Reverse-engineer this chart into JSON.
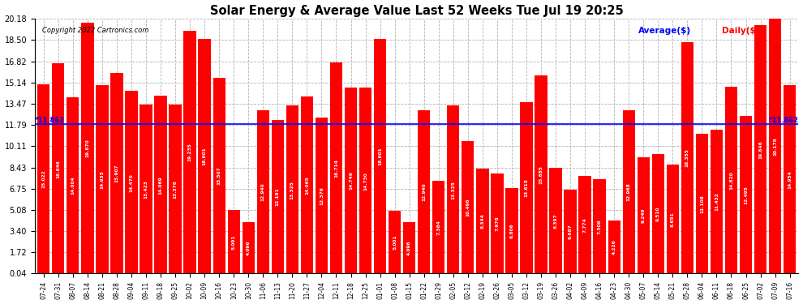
{
  "title": "Solar Energy & Average Value Last 52 Weeks Tue Jul 19 20:25",
  "copyright": "Copyright 2022 Cartronics.com",
  "legend_avg": "Average($)",
  "legend_daily": "Daily($)",
  "average_line": 11.862,
  "bar_color": "#FF0000",
  "avg_line_color": "#0000FF",
  "background_color": "#FFFFFF",
  "grid_color": "#AAAAAA",
  "ylim_min": 0.04,
  "ylim_max": 20.18,
  "yticks": [
    0.04,
    1.72,
    3.4,
    5.08,
    6.75,
    8.43,
    10.11,
    11.79,
    13.47,
    15.14,
    16.82,
    18.5,
    20.18
  ],
  "categories": [
    "07-24",
    "07-31",
    "08-07",
    "08-14",
    "08-21",
    "08-28",
    "09-04",
    "09-11",
    "09-18",
    "09-25",
    "10-02",
    "10-09",
    "10-16",
    "10-23",
    "10-30",
    "11-06",
    "11-13",
    "11-20",
    "11-27",
    "12-04",
    "12-11",
    "12-18",
    "12-25",
    "01-01",
    "01-08",
    "01-15",
    "01-22",
    "01-29",
    "02-05",
    "02-12",
    "02-19",
    "02-26",
    "03-05",
    "03-12",
    "03-19",
    "03-26",
    "04-02",
    "04-09",
    "04-16",
    "04-23",
    "04-30",
    "05-07",
    "05-14",
    "05-21",
    "05-28",
    "06-04",
    "06-11",
    "06-18",
    "06-25",
    "07-02",
    "07-09",
    "07-16"
  ],
  "values": [
    15.022,
    16.646,
    14.004,
    19.87,
    14.935,
    15.907,
    14.47,
    13.423,
    14.069,
    13.376,
    19.235,
    18.601,
    15.507,
    5.091,
    4.096,
    12.94,
    12.191,
    13.325,
    14.065,
    12.376,
    16.714,
    14.746,
    14.73,
    18.601,
    5.001,
    4.096,
    12.94,
    7.384,
    13.325,
    10.496,
    8.344,
    7.978,
    6.806,
    13.615,
    15.685,
    8.397,
    6.687,
    7.774,
    7.506,
    4.226,
    12.968,
    9.249,
    9.51,
    8.651,
    18.355,
    11.108,
    11.432,
    14.82,
    12.495,
    19.646,
    20.178,
    14.954
  ],
  "value_labels": [
    "15.022",
    "16.646",
    "14.004",
    "19.870",
    "14.935",
    "15.907",
    "14.470",
    "13.423",
    "14.069",
    "13.376",
    "19.235",
    "18.601",
    "15.507",
    "5.091",
    "4.096",
    "12.940",
    "12.191",
    "13.325",
    "14.065",
    "12.376",
    "16.714",
    "14.746",
    "14.730",
    "18.601",
    "5.001",
    "4.096",
    "12.940",
    "7.384",
    "13.325",
    "10.496",
    "8.344",
    "7.978",
    "6.806",
    "13.615",
    "15.685",
    "8.397",
    "6.687",
    "7.774",
    "7.506",
    "4.226",
    "12.968",
    "9.249",
    "9.510",
    "8.651",
    "18.355",
    "11.108",
    "11.432",
    "14.820",
    "12.495",
    "19.646",
    "20.178",
    "14.954"
  ]
}
